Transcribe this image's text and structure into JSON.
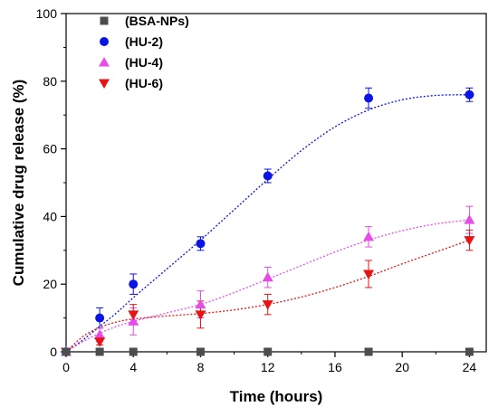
{
  "chart_data": {
    "type": "scatter",
    "title": "",
    "xlabel": "Time (hours)",
    "ylabel": "Cumulative drug release (%)",
    "xlim": [
      0,
      25
    ],
    "ylim": [
      0,
      100
    ],
    "xticks": [
      0,
      4,
      8,
      12,
      16,
      20,
      24
    ],
    "yticks": [
      0,
      20,
      40,
      60,
      80,
      100
    ],
    "grid": false,
    "legend_position": "top-left",
    "series": [
      {
        "name": "(BSA-NPs)",
        "marker": "square",
        "color": "#4d4d4d",
        "x": [
          0,
          2,
          4,
          8,
          12,
          18,
          24
        ],
        "y": [
          0,
          0,
          0,
          0,
          0,
          0,
          0
        ],
        "err": [
          0,
          0,
          0,
          0,
          0,
          0,
          0
        ],
        "fit": false
      },
      {
        "name": "(HU-2)",
        "marker": "circle",
        "color": "#0a14e6",
        "x": [
          0,
          2,
          4,
          8,
          12,
          18,
          24
        ],
        "y": [
          0,
          10,
          20,
          32,
          52,
          75,
          76
        ],
        "err": [
          0,
          3,
          3,
          2,
          2,
          3,
          2
        ],
        "fit": true,
        "fit_x": [
          0,
          1,
          2,
          3,
          4,
          6,
          8,
          10,
          12,
          14,
          16,
          18,
          20,
          22,
          24
        ],
        "fit_y": [
          0,
          3.5,
          7.5,
          11.5,
          16,
          24.5,
          33,
          42,
          51,
          59.5,
          66.5,
          71.5,
          74.5,
          75.8,
          76
        ]
      },
      {
        "name": "(HU-4)",
        "marker": "triangle-up",
        "color": "#e64de6",
        "x": [
          0,
          2,
          4,
          8,
          12,
          18,
          24
        ],
        "y": [
          0,
          5,
          9,
          14,
          22,
          34,
          39
        ],
        "err": [
          0,
          2,
          4,
          4,
          3,
          3,
          4
        ],
        "fit": true,
        "fit_x": [
          0,
          1,
          2,
          3,
          4,
          6,
          8,
          10,
          12,
          14,
          16,
          18,
          20,
          22,
          24
        ],
        "fit_y": [
          0,
          3,
          5.5,
          7.5,
          9,
          11.5,
          14,
          17.5,
          21.5,
          25.5,
          29.5,
          33,
          35.8,
          37.8,
          39
        ]
      },
      {
        "name": "(HU-6)",
        "marker": "triangle-down",
        "color": "#e61414",
        "x": [
          0,
          2,
          4,
          8,
          12,
          18,
          24
        ],
        "y": [
          0,
          3,
          11,
          11,
          14,
          23,
          33
        ],
        "err": [
          0,
          1,
          3,
          4,
          3,
          4,
          3
        ],
        "fit": true,
        "fit_x": [
          0,
          1,
          2,
          3,
          4,
          6,
          8,
          10,
          12,
          14,
          16,
          18,
          20,
          22,
          24
        ],
        "fit_y": [
          0,
          4.5,
          7.2,
          8.8,
          9.7,
          10.6,
          11.3,
          12.4,
          14,
          16.2,
          19,
          22.3,
          26,
          29.5,
          33
        ]
      }
    ]
  }
}
